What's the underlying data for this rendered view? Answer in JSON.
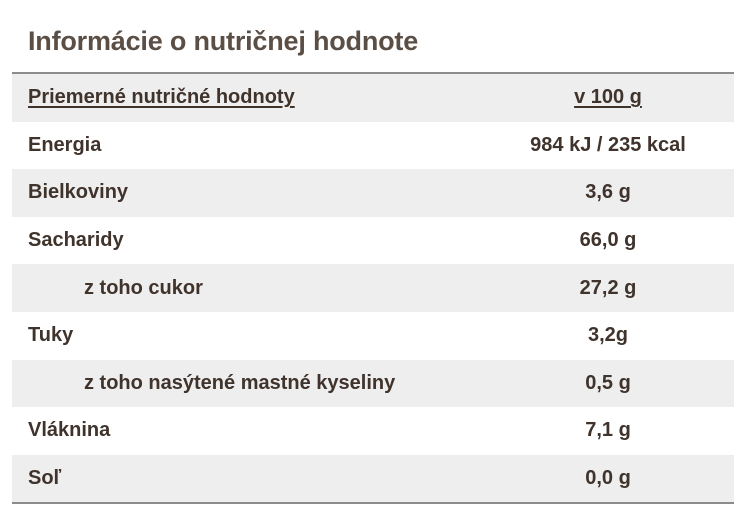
{
  "title": "Informácie o nutričnej hodnote",
  "table": {
    "header": {
      "label": "Priemerné nutričné hodnoty",
      "value": "v 100 g"
    },
    "rows": [
      {
        "label": "Energia",
        "value": "984 kJ / 235 kcal",
        "indent": false
      },
      {
        "label": "Bielkoviny",
        "value": "3,6 g",
        "indent": false
      },
      {
        "label": "Sacharidy",
        "value": "66,0 g",
        "indent": false
      },
      {
        "label": "z toho cukor",
        "value": "27,2 g",
        "indent": true
      },
      {
        "label": "Tuky",
        "value": "3,2g",
        "indent": false
      },
      {
        "label": "z toho nasýtené mastné kyseliny",
        "value": "0,5 g",
        "indent": true
      },
      {
        "label": "Vláknina",
        "value": "7,1 g",
        "indent": false
      },
      {
        "label": "Soľ",
        "value": "0,0 g",
        "indent": false
      }
    ]
  },
  "colors": {
    "shaded_row": "#eeeeee",
    "rule": "#8c8c8c",
    "text": "#3f332c"
  }
}
